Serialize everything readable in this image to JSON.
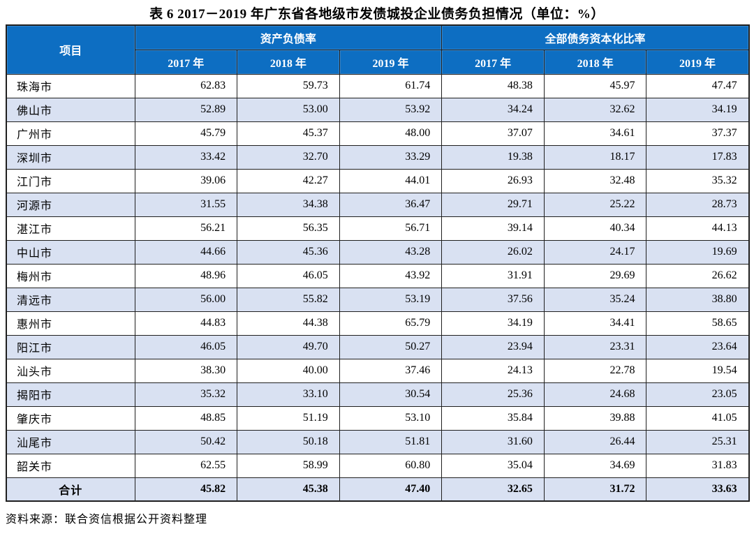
{
  "title": "表 6  2017－2019 年广东省各地级市发债城投企业债务负担情况（单位：%）",
  "table": {
    "project_header": "项目",
    "group_headers": {
      "asset_liability_ratio": "资产负债率",
      "total_debt_capitalization_ratio": "全部债务资本化比率"
    },
    "year_headers": [
      "2017 年",
      "2018 年",
      "2019 年",
      "2017 年",
      "2018 年",
      "2019 年"
    ],
    "rows": [
      {
        "name": "珠海市",
        "values": [
          "62.83",
          "59.73",
          "61.74",
          "48.38",
          "45.97",
          "47.47"
        ]
      },
      {
        "name": "佛山市",
        "values": [
          "52.89",
          "53.00",
          "53.92",
          "34.24",
          "32.62",
          "34.19"
        ]
      },
      {
        "name": "广州市",
        "values": [
          "45.79",
          "45.37",
          "48.00",
          "37.07",
          "34.61",
          "37.37"
        ]
      },
      {
        "name": "深圳市",
        "values": [
          "33.42",
          "32.70",
          "33.29",
          "19.38",
          "18.17",
          "17.83"
        ]
      },
      {
        "name": "江门市",
        "values": [
          "39.06",
          "42.27",
          "44.01",
          "26.93",
          "32.48",
          "35.32"
        ]
      },
      {
        "name": "河源市",
        "values": [
          "31.55",
          "34.38",
          "36.47",
          "29.71",
          "25.22",
          "28.73"
        ]
      },
      {
        "name": "湛江市",
        "values": [
          "56.21",
          "56.35",
          "56.71",
          "39.14",
          "40.34",
          "44.13"
        ]
      },
      {
        "name": "中山市",
        "values": [
          "44.66",
          "45.36",
          "43.28",
          "26.02",
          "24.17",
          "19.69"
        ]
      },
      {
        "name": "梅州市",
        "values": [
          "48.96",
          "46.05",
          "43.92",
          "31.91",
          "29.69",
          "26.62"
        ]
      },
      {
        "name": "清远市",
        "values": [
          "56.00",
          "55.82",
          "53.19",
          "37.56",
          "35.24",
          "38.80"
        ]
      },
      {
        "name": "惠州市",
        "values": [
          "44.83",
          "44.38",
          "65.79",
          "34.19",
          "34.41",
          "58.65"
        ]
      },
      {
        "name": "阳江市",
        "values": [
          "46.05",
          "49.70",
          "50.27",
          "23.94",
          "23.31",
          "23.64"
        ]
      },
      {
        "name": "汕头市",
        "values": [
          "38.30",
          "40.00",
          "37.46",
          "24.13",
          "22.78",
          "19.54"
        ]
      },
      {
        "name": "揭阳市",
        "values": [
          "35.32",
          "33.10",
          "30.54",
          "25.36",
          "24.68",
          "23.05"
        ]
      },
      {
        "name": "肇庆市",
        "values": [
          "48.85",
          "51.19",
          "53.10",
          "35.84",
          "39.88",
          "41.05"
        ]
      },
      {
        "name": "汕尾市",
        "values": [
          "50.42",
          "50.18",
          "51.81",
          "31.60",
          "26.44",
          "25.31"
        ]
      },
      {
        "name": "韶关市",
        "values": [
          "62.55",
          "58.99",
          "60.80",
          "35.04",
          "34.69",
          "31.83"
        ]
      }
    ],
    "total": {
      "name": "合计",
      "values": [
        "45.82",
        "45.38",
        "47.40",
        "32.65",
        "31.72",
        "33.63"
      ]
    }
  },
  "source": "资料来源：联合资信根据公开资料整理",
  "colors": {
    "header_bg": "#0d6ec2",
    "stripe_bg": "#d9e1f2",
    "border": "#1f1f1f"
  }
}
